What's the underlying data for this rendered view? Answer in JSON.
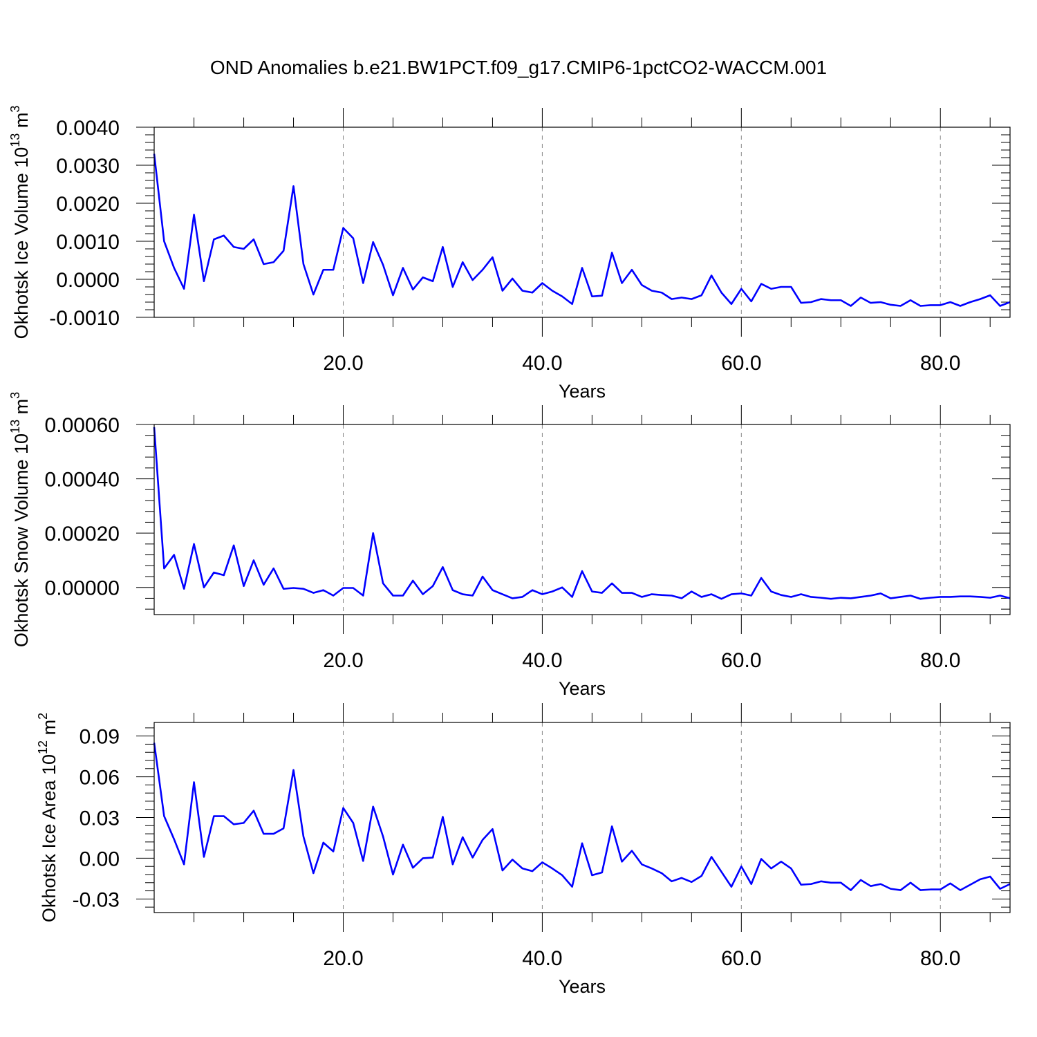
{
  "title": "OND Anomalies b.e21.BW1PCT.f09_g17.CMIP6-1pctCO2-WACCM.001",
  "colors": {
    "line": "#0000ff",
    "grid": "#888888",
    "axis": "#000000"
  },
  "chart_data": [
    {
      "type": "line",
      "ylabel": "Okhotsk Ice Volume 10",
      "ylabel_exp": "13",
      "ylabel_unit": " m",
      "ylabel_unit_exp": "3",
      "xlabel": "Years",
      "xlim": [
        1,
        87
      ],
      "ylim": [
        -0.001,
        0.004
      ],
      "yticks": [
        -0.001,
        0,
        0.001,
        0.002,
        0.003,
        0.004
      ],
      "yticklabels": [
        "-0.0010",
        "0.0000",
        "0.0010",
        "0.0020",
        "0.0030",
        "0.0040"
      ],
      "xticks": [
        20,
        40,
        60,
        80
      ],
      "xticklabels": [
        "20.0",
        "40.0",
        "60.0",
        "80.0"
      ],
      "grid": "vertical dashed at major x ticks",
      "series": [
        {
          "values": [
            0.0033,
            0.001,
            0.0003,
            -0.00025,
            0.0017,
            -5e-05,
            0.00105,
            0.00115,
            0.00085,
            0.0008,
            0.00105,
            0.0004,
            0.00045,
            0.00075,
            0.00245,
            0.0004,
            -0.0004,
            0.00025,
            0.00025,
            0.00135,
            0.00108,
            -0.0001,
            0.00098,
            0.00038,
            -0.00042,
            0.0003,
            -0.00027,
            5e-05,
            -5e-05,
            0.00085,
            -0.0002,
            0.00045,
            -2e-05,
            0.00025,
            0.00058,
            -0.0003,
            2e-05,
            -0.0003,
            -0.00035,
            -0.0001,
            -0.0003,
            -0.00045,
            -0.00065,
            0.0003,
            -0.00045,
            -0.00043,
            0.0007,
            -0.0001,
            0.00025,
            -0.00015,
            -0.0003,
            -0.00035,
            -0.00052,
            -0.00048,
            -0.00052,
            -0.00042,
            0.0001,
            -0.00035,
            -0.00065,
            -0.00025,
            -0.00058,
            -0.00012,
            -0.00025,
            -0.0002,
            -0.0002,
            -0.00062,
            -0.0006,
            -0.00052,
            -0.00055,
            -0.00055,
            -0.0007,
            -0.00048,
            -0.00062,
            -0.0006,
            -0.00067,
            -0.0007,
            -0.00055,
            -0.0007,
            -0.00068,
            -0.00068,
            -0.0006,
            -0.0007,
            -0.0006,
            -0.00052,
            -0.00042,
            -0.0007,
            -0.0006
          ]
        }
      ]
    },
    {
      "type": "line",
      "ylabel": "Okhotsk Snow Volume 10",
      "ylabel_exp": "13",
      "ylabel_unit": " m",
      "ylabel_unit_exp": "3",
      "xlabel": "Years",
      "xlim": [
        1,
        87
      ],
      "ylim": [
        -0.0001,
        0.0006
      ],
      "yticks": [
        0,
        0.0002,
        0.0004,
        0.0006
      ],
      "yticklabels": [
        "0.00000",
        "0.00020",
        "0.00040",
        "0.00060"
      ],
      "xticks": [
        20,
        40,
        60,
        80
      ],
      "xticklabels": [
        "20.0",
        "40.0",
        "60.0",
        "80.0"
      ],
      "grid": "vertical dashed at major x ticks",
      "series": [
        {
          "values": [
            0.00059,
            7e-05,
            0.00012,
            -5e-06,
            0.00016,
            0.0,
            5.5e-05,
            4.5e-05,
            0.000155,
            5e-06,
            0.0001,
            1e-05,
            7e-05,
            -5e-06,
            -2e-06,
            -5e-06,
            -2e-05,
            -1e-05,
            -3e-05,
            -2e-06,
            -2e-06,
            -3e-05,
            0.0002,
            1.5e-05,
            -3e-05,
            -3e-05,
            2.5e-05,
            -2.5e-05,
            5e-06,
            7.5e-05,
            -1e-05,
            -2.5e-05,
            -3e-05,
            4e-05,
            -1e-05,
            -2.5e-05,
            -4e-05,
            -3.5e-05,
            -1e-05,
            -2.5e-05,
            -1.5e-05,
            0.0,
            -3.5e-05,
            6e-05,
            -1.5e-05,
            -2e-05,
            1.5e-05,
            -2e-05,
            -2e-05,
            -3.5e-05,
            -2.5e-05,
            -2.8e-05,
            -3e-05,
            -4e-05,
            -1.5e-05,
            -3.5e-05,
            -2.5e-05,
            -4.2e-05,
            -2.5e-05,
            -2.2e-05,
            -3e-05,
            3.5e-05,
            -1.5e-05,
            -2.8e-05,
            -3.5e-05,
            -2.5e-05,
            -3.5e-05,
            -3.8e-05,
            -4.2e-05,
            -3.8e-05,
            -4e-05,
            -3.5e-05,
            -3e-05,
            -2.2e-05,
            -4e-05,
            -3.5e-05,
            -3e-05,
            -4.2e-05,
            -3.8e-05,
            -3.5e-05,
            -3.5e-05,
            -3.3e-05,
            -3.3e-05,
            -3.5e-05,
            -3.8e-05,
            -3e-05,
            -4e-05
          ]
        }
      ]
    },
    {
      "type": "line",
      "ylabel": "Okhotsk Ice Area 10",
      "ylabel_exp": "12",
      "ylabel_unit": " m",
      "ylabel_unit_exp": "2",
      "xlabel": "Years",
      "xlim": [
        1,
        87
      ],
      "ylim": [
        -0.04,
        0.1
      ],
      "yticks": [
        -0.03,
        0,
        0.03,
        0.06,
        0.09
      ],
      "yticklabels": [
        "-0.03",
        "0.00",
        "0.03",
        "0.06",
        "0.09"
      ],
      "xticks": [
        20,
        40,
        60,
        80
      ],
      "xticklabels": [
        "20.0",
        "40.0",
        "60.0",
        "80.0"
      ],
      "grid": "vertical dashed at major x ticks",
      "series": [
        {
          "values": [
            0.085,
            0.031,
            0.014,
            -0.0045,
            0.056,
            0.001,
            0.031,
            0.031,
            0.025,
            0.026,
            0.035,
            0.018,
            0.018,
            0.022,
            0.065,
            0.016,
            -0.011,
            0.0115,
            0.005,
            0.037,
            0.026,
            -0.002,
            0.038,
            0.016,
            -0.012,
            0.01,
            -0.007,
            0.0,
            0.0005,
            0.0305,
            -0.0045,
            0.0155,
            0.0005,
            0.0135,
            0.0215,
            -0.009,
            -0.001,
            -0.0075,
            -0.0095,
            -0.003,
            -0.0075,
            -0.0125,
            -0.021,
            0.011,
            -0.0125,
            -0.0105,
            0.0235,
            -0.0025,
            0.0055,
            -0.0045,
            -0.0075,
            -0.011,
            -0.017,
            -0.0145,
            -0.0175,
            -0.013,
            0.001,
            -0.01,
            -0.021,
            -0.006,
            -0.019,
            -0.0005,
            -0.0075,
            -0.0025,
            -0.0075,
            -0.0195,
            -0.019,
            -0.017,
            -0.018,
            -0.018,
            -0.0235,
            -0.016,
            -0.0205,
            -0.019,
            -0.0225,
            -0.0235,
            -0.018,
            -0.0235,
            -0.023,
            -0.023,
            -0.0185,
            -0.0235,
            -0.0195,
            -0.0155,
            -0.0135,
            -0.0225,
            -0.019
          ]
        }
      ]
    }
  ]
}
